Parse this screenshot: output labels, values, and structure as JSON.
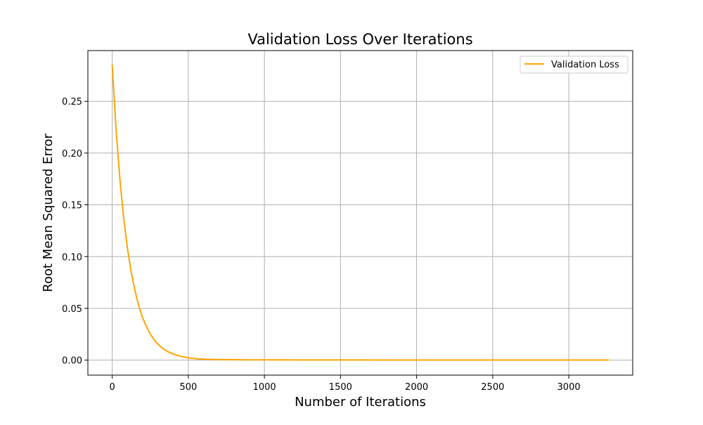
{
  "chart_data": {
    "type": "line",
    "title": "Validation Loss Over Iterations",
    "xlabel": "Number of Iterations",
    "ylabel": "Root Mean Squared Error",
    "xlim": [
      -160,
      3420
    ],
    "ylim": [
      -0.0145,
      0.299
    ],
    "xticks": [
      0,
      500,
      1000,
      1500,
      2000,
      2500,
      3000
    ],
    "xtick_labels": [
      "0",
      "500",
      "1000",
      "1500",
      "2000",
      "2500",
      "3000"
    ],
    "yticks": [
      0.0,
      0.05,
      0.1,
      0.15,
      0.2,
      0.25
    ],
    "ytick_labels": [
      "0.00",
      "0.05",
      "0.10",
      "0.15",
      "0.20",
      "0.25"
    ],
    "grid": true,
    "legend_position": "top-right",
    "series": [
      {
        "name": "Validation Loss",
        "color": "#FFA500",
        "x": [
          0,
          25,
          50,
          75,
          100,
          125,
          150,
          175,
          200,
          225,
          250,
          275,
          300,
          325,
          350,
          375,
          400,
          450,
          500,
          550,
          600,
          700,
          800,
          900,
          1000,
          1250,
          1500,
          1750,
          2000,
          2250,
          2500,
          2750,
          3000,
          3260
        ],
        "y": [
          0.285,
          0.2236,
          0.1754,
          0.1376,
          0.108,
          0.0847,
          0.0665,
          0.0521,
          0.0409,
          0.0321,
          0.0252,
          0.0197,
          0.0155,
          0.0121,
          0.0095,
          0.0075,
          0.0059,
          0.0036,
          0.0022,
          0.0014,
          0.0009,
          0.0005,
          0.0004,
          0.0003,
          0.0003,
          0.0002,
          0.0002,
          0.0001,
          0.0001,
          0.0001,
          0.0001,
          0.0001,
          0.0001,
          0.0001
        ]
      }
    ]
  }
}
